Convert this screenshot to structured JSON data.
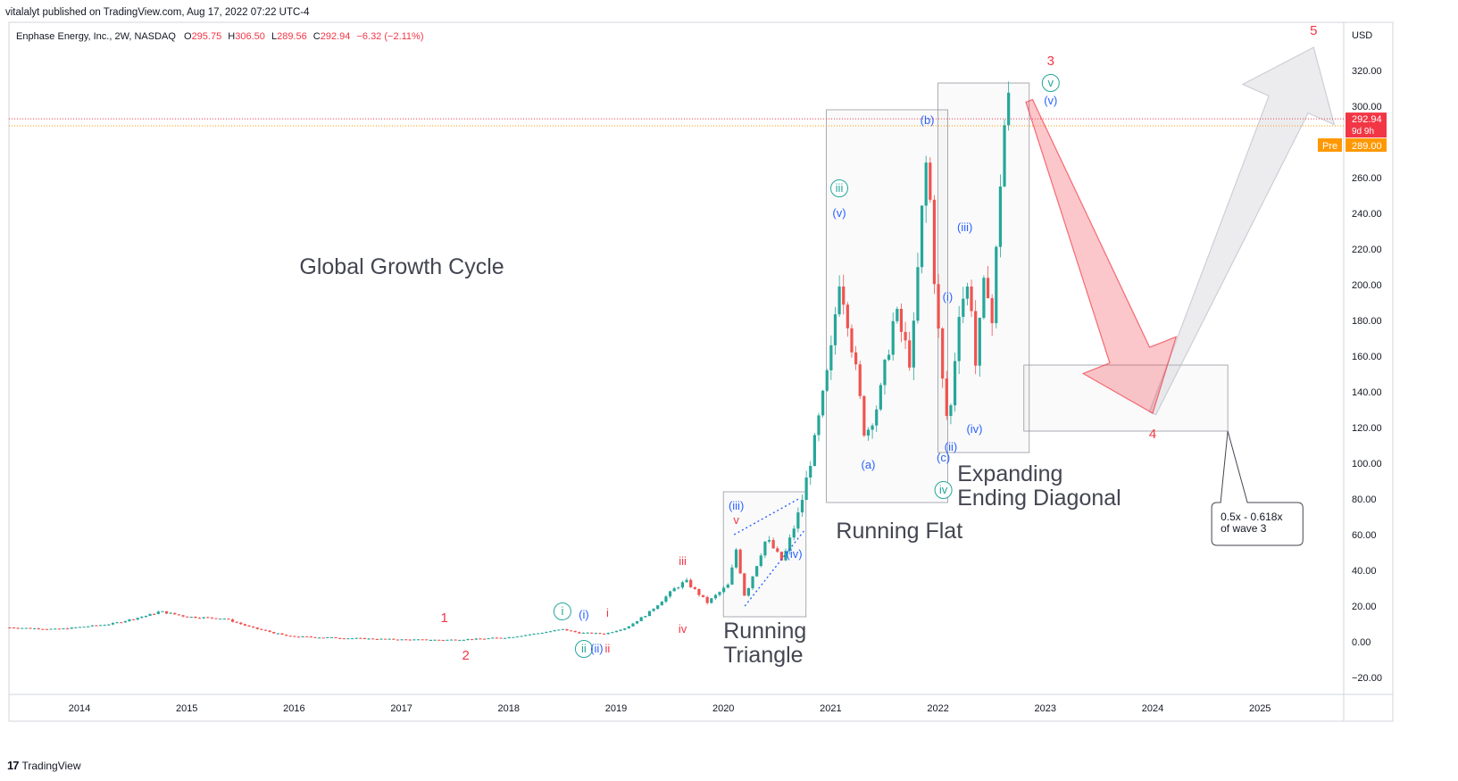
{
  "header": {
    "published_line": "vitalalyt published on TradingView.com, Aug 17, 2022 07:22 UTC-4"
  },
  "legend": {
    "symbol_line": "Enphase Energy, Inc., 2W, NASDAQ",
    "o_label": "O",
    "o_value": "295.75",
    "h_label": "H",
    "h_value": "306.50",
    "l_label": "L",
    "l_value": "289.56",
    "c_label": "C",
    "c_value": "292.94",
    "change": "−6.32 (−2.11%)"
  },
  "footer": {
    "brand": "TradingView",
    "logo_glyph": "17"
  },
  "chart_data": {
    "type": "candlestick",
    "currency": "USD",
    "ylim": [
      -20,
      340
    ],
    "yticks": [
      -20,
      0,
      20,
      40,
      60,
      80,
      100,
      120,
      140,
      160,
      180,
      200,
      220,
      240,
      260,
      280,
      300,
      320
    ],
    "xlim": [
      2013.35,
      2025.75
    ],
    "xticks": [
      "2014",
      "2015",
      "2016",
      "2017",
      "2018",
      "2019",
      "2020",
      "2021",
      "2022",
      "2023",
      "2024",
      "2025"
    ],
    "last_price": {
      "value": 292.94,
      "label": "292.94",
      "countdown": "9d 9h",
      "color": "#f23645"
    },
    "premarket": {
      "tag": "Pre",
      "value": 289.0,
      "label": "289.00",
      "color": "#ff9800"
    },
    "price_anchors": [
      [
        2013.35,
        8
      ],
      [
        2013.8,
        7
      ],
      [
        2014.3,
        10
      ],
      [
        2014.65,
        15
      ],
      [
        2014.75,
        17
      ],
      [
        2015.0,
        14
      ],
      [
        2015.35,
        13
      ],
      [
        2015.6,
        8
      ],
      [
        2015.95,
        3
      ],
      [
        2016.5,
        2
      ],
      [
        2017.0,
        1.2
      ],
      [
        2017.4,
        1.0
      ],
      [
        2017.7,
        1.5
      ],
      [
        2018.0,
        2.5
      ],
      [
        2018.3,
        5
      ],
      [
        2018.5,
        7
      ],
      [
        2018.65,
        5
      ],
      [
        2018.9,
        4.5
      ],
      [
        2019.1,
        8
      ],
      [
        2019.3,
        16
      ],
      [
        2019.55,
        30
      ],
      [
        2019.65,
        34
      ],
      [
        2019.85,
        22
      ],
      [
        2020.05,
        32
      ],
      [
        2020.12,
        52
      ],
      [
        2020.2,
        25
      ],
      [
        2020.4,
        58
      ],
      [
        2020.55,
        45
      ],
      [
        2020.68,
        68
      ],
      [
        2020.72,
        76
      ],
      [
        2020.85,
        112
      ],
      [
        2021.0,
        160
      ],
      [
        2021.08,
        205
      ],
      [
        2021.15,
        185
      ],
      [
        2021.25,
        145
      ],
      [
        2021.32,
        115
      ],
      [
        2021.45,
        135
      ],
      [
        2021.6,
        185
      ],
      [
        2021.75,
        155
      ],
      [
        2021.85,
        240
      ],
      [
        2021.9,
        275
      ],
      [
        2021.98,
        190
      ],
      [
        2022.05,
        140
      ],
      [
        2022.1,
        118
      ],
      [
        2022.2,
        190
      ],
      [
        2022.3,
        200
      ],
      [
        2022.35,
        155
      ],
      [
        2022.45,
        210
      ],
      [
        2022.5,
        175
      ],
      [
        2022.55,
        225
      ],
      [
        2022.6,
        280
      ],
      [
        2022.65,
        305
      ],
      [
        2022.68,
        293
      ]
    ],
    "wave_labels": [
      {
        "text": "1",
        "x": 2017.4,
        "y": 11,
        "color": "#f23645"
      },
      {
        "text": "2",
        "x": 2017.6,
        "y": -10,
        "color": "#f23645"
      },
      {
        "text": "3",
        "x": 2023.05,
        "y": 323,
        "color": "#f23645"
      },
      {
        "text": "4",
        "x": 2024.0,
        "y": 114,
        "color": "#f23645"
      },
      {
        "text": "5",
        "x": 2025.5,
        "y": 340,
        "color": "#f23645"
      },
      {
        "text": "i",
        "x": 2018.5,
        "y": 15,
        "color": "#26a69a",
        "circled": true
      },
      {
        "text": "ii",
        "x": 2018.7,
        "y": -6,
        "color": "#26a69a",
        "circled": true
      },
      {
        "text": "iii",
        "x": 2021.08,
        "y": 252,
        "color": "#26a69a",
        "circled": true
      },
      {
        "text": "iv",
        "x": 2022.05,
        "y": 83,
        "color": "#26a69a",
        "circled": true
      },
      {
        "text": "v",
        "x": 2023.05,
        "y": 311,
        "color": "#26a69a",
        "circled": true
      },
      {
        "text": "(i)",
        "x": 2018.7,
        "y": 13,
        "color": "#2962ff"
      },
      {
        "text": "(ii)",
        "x": 2018.82,
        "y": -6,
        "color": "#2962ff"
      },
      {
        "text": "(iii)",
        "x": 2020.12,
        "y": 74,
        "color": "#2962ff"
      },
      {
        "text": "(iv)",
        "x": 2020.66,
        "y": 47,
        "color": "#2962ff"
      },
      {
        "text": "(v)",
        "x": 2021.08,
        "y": 238,
        "color": "#2962ff"
      },
      {
        "text": "(a)",
        "x": 2021.35,
        "y": 97,
        "color": "#2962ff"
      },
      {
        "text": "(b)",
        "x": 2021.9,
        "y": 290,
        "color": "#2962ff"
      },
      {
        "text": "(c)",
        "x": 2022.05,
        "y": 101,
        "color": "#2962ff"
      },
      {
        "text": "(i)",
        "x": 2022.09,
        "y": 191,
        "color": "#2962ff"
      },
      {
        "text": "(ii)",
        "x": 2022.12,
        "y": 107,
        "color": "#2962ff"
      },
      {
        "text": "(iii)",
        "x": 2022.25,
        "y": 230,
        "color": "#2962ff"
      },
      {
        "text": "(iv)",
        "x": 2022.34,
        "y": 117,
        "color": "#2962ff"
      },
      {
        "text": "(v)",
        "x": 2023.05,
        "y": 301,
        "color": "#2962ff"
      },
      {
        "text": "i",
        "x": 2018.92,
        "y": 14,
        "color": "#f23645"
      },
      {
        "text": "ii",
        "x": 2018.92,
        "y": -6,
        "color": "#f23645"
      },
      {
        "text": "iii",
        "x": 2019.62,
        "y": 43,
        "color": "#f23645"
      },
      {
        "text": "iv",
        "x": 2019.62,
        "y": 5,
        "color": "#f23645"
      },
      {
        "text": "v",
        "x": 2020.12,
        "y": 66,
        "color": "#f23645"
      }
    ],
    "annotations": [
      {
        "lines": [
          "Global Growth Cycle"
        ],
        "x": 2016.05,
        "y": 206
      },
      {
        "lines": [
          "Running",
          "Triangle"
        ],
        "x": 2020.0,
        "y": 2
      },
      {
        "lines": [
          "Running Flat"
        ],
        "x": 2021.05,
        "y": 58
      },
      {
        "lines": [
          "Expanding",
          "Ending Diagonal"
        ],
        "x": 2022.18,
        "y": 90
      }
    ],
    "boxes": [
      {
        "x0": 2020.0,
        "x1": 2020.77,
        "y0": 14,
        "y1": 84
      },
      {
        "x0": 2020.96,
        "x1": 2022.09,
        "y0": 78,
        "y1": 298
      },
      {
        "x0": 2022.0,
        "x1": 2022.85,
        "y0": 106,
        "y1": 313
      },
      {
        "x0": 2022.8,
        "x1": 2024.7,
        "y0": 118,
        "y1": 155
      }
    ],
    "callout": {
      "lines": [
        "0.5x - 0.618x",
        "of wave 3"
      ],
      "x0": 2024.55,
      "x1": 2025.4,
      "y0": 54,
      "y1": 78,
      "pointer": [
        2024.7,
        118
      ]
    },
    "arrow_down": {
      "from": [
        2022.85,
        303
      ],
      "to": [
        2024.0,
        128
      ]
    },
    "arrow_up": {
      "from": [
        2024.0,
        128
      ],
      "to": [
        2025.5,
        333
      ]
    }
  }
}
